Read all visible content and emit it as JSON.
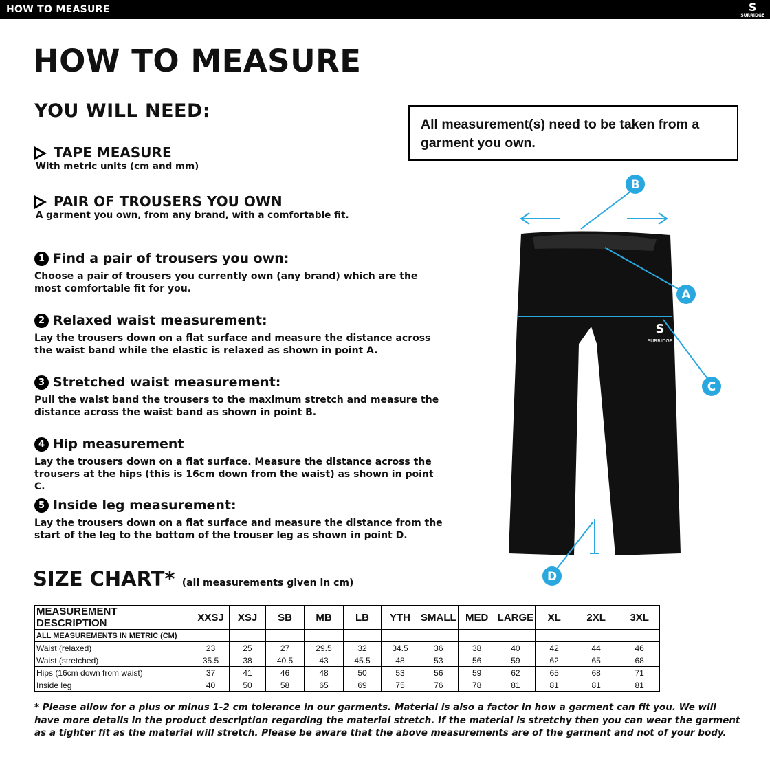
{
  "header": {
    "bar_title": "HOW TO MEASURE",
    "logo": "SURRIDGE"
  },
  "title": "HOW TO MEASURE",
  "need": {
    "heading": "YOU WILL NEED:",
    "items": [
      {
        "title": "TAPE MEASURE",
        "text": "With metric units (cm and mm)"
      },
      {
        "title": "PAIR OF TROUSERS YOU OWN",
        "text": "A garment you own, from any brand, with a comfortable fit."
      }
    ]
  },
  "note": "All measurement(s) need to be taken from a garment you own.",
  "steps": [
    {
      "number": "1",
      "title": "Find a pair of trousers you own:",
      "text": "Choose a pair of trousers you currently own (any brand) which are the most comfortable fit for you."
    },
    {
      "number": "2",
      "title": "Relaxed waist measurement:",
      "text": "Lay the trousers down on a flat surface and measure the distance across the waist band while the elastic is relaxed as shown in point A."
    },
    {
      "number": "3",
      "title": "Stretched waist measurement:",
      "text": "Pull the waist band the trousers to the maximum stretch and measure the distance across the waist band as shown in point B."
    },
    {
      "number": "4",
      "title": "Hip measurement",
      "text": "Lay the trousers down on a flat surface. Measure the distance across the trousers at the hips (this is 16cm down from the waist) as shown in point C."
    },
    {
      "number": "5",
      "title": "Inside leg measurement:",
      "text": "Lay the trousers down on a flat surface and measure the distance from the start of the leg to the bottom of the trouser leg as shown in point D."
    }
  ],
  "diagram": {
    "labels": [
      "B",
      "A",
      "C",
      "D"
    ],
    "logo": "SURRIDGE"
  },
  "size_chart": {
    "heading": "SIZE CHART*",
    "subheading": "(all measurements given in cm)",
    "columns": [
      "MEASUREMENT DESCRIPTION",
      "XXSJ",
      "XSJ",
      "SB",
      "MB",
      "LB",
      "YTH",
      "SMALL",
      "MED",
      "LARGE",
      "XL",
      "2XL",
      "3XL"
    ],
    "subheader": "ALL MEASUREMENTS IN METRIC (CM)",
    "rows": [
      {
        "label": "Waist (relaxed)",
        "values": [
          23,
          25,
          27,
          29.5,
          32,
          34.5,
          36,
          38,
          40,
          42,
          44,
          46
        ]
      },
      {
        "label": "Waist (stretched)",
        "values": [
          35.5,
          38,
          40.5,
          43,
          45.5,
          48,
          53,
          56,
          59,
          62,
          65,
          68
        ]
      },
      {
        "label": "Hips (16cm down from waist)",
        "values": [
          37,
          41,
          46,
          48,
          50,
          53,
          56,
          59,
          62,
          65,
          68,
          71
        ]
      },
      {
        "label": "Inside leg",
        "values": [
          40,
          50,
          58,
          65,
          69,
          75,
          76,
          78,
          81,
          81,
          81,
          81
        ]
      }
    ]
  },
  "footnote": "* Please allow for a plus or minus 1-2 cm tolerance in our garments. Material is also a factor in how a garment can fit you. We will have more details in the product description regarding the material stretch.  If the material is stretchy then you can wear the garment as a tighter fit as the material will stretch.  Please be aware that the above measurements are of the garment and not of your body."
}
